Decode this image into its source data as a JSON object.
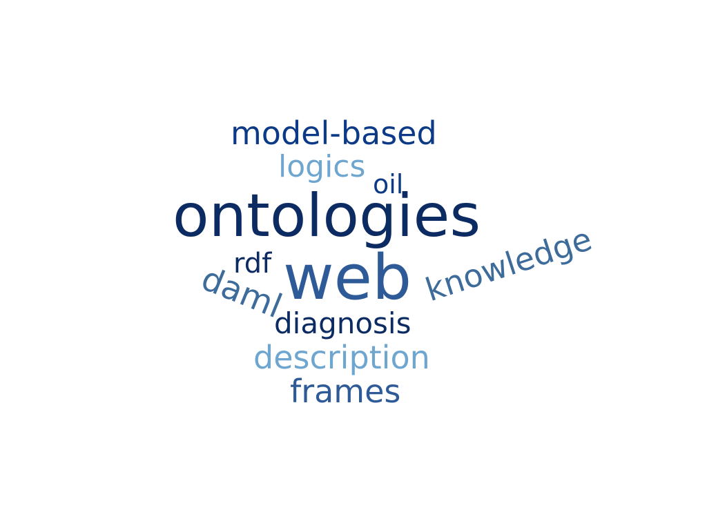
{
  "cloud": {
    "words": [
      {
        "text": "ontologies",
        "color": "#0d2b63"
      },
      {
        "text": "web",
        "color": "#2e5b97"
      },
      {
        "text": "model-based",
        "color": "#0d3a86"
      },
      {
        "text": "logics",
        "color": "#6ea6cf"
      },
      {
        "text": "oil",
        "color": "#0d3a86"
      },
      {
        "text": "rdf",
        "color": "#0d2b63"
      },
      {
        "text": "daml",
        "color": "#3d6b9a"
      },
      {
        "text": "knowledge",
        "color": "#3d6b9a"
      },
      {
        "text": "diagnosis",
        "color": "#0d2b63"
      },
      {
        "text": "description",
        "color": "#6ea6cf"
      },
      {
        "text": "frames",
        "color": "#2e5b97"
      }
    ]
  }
}
